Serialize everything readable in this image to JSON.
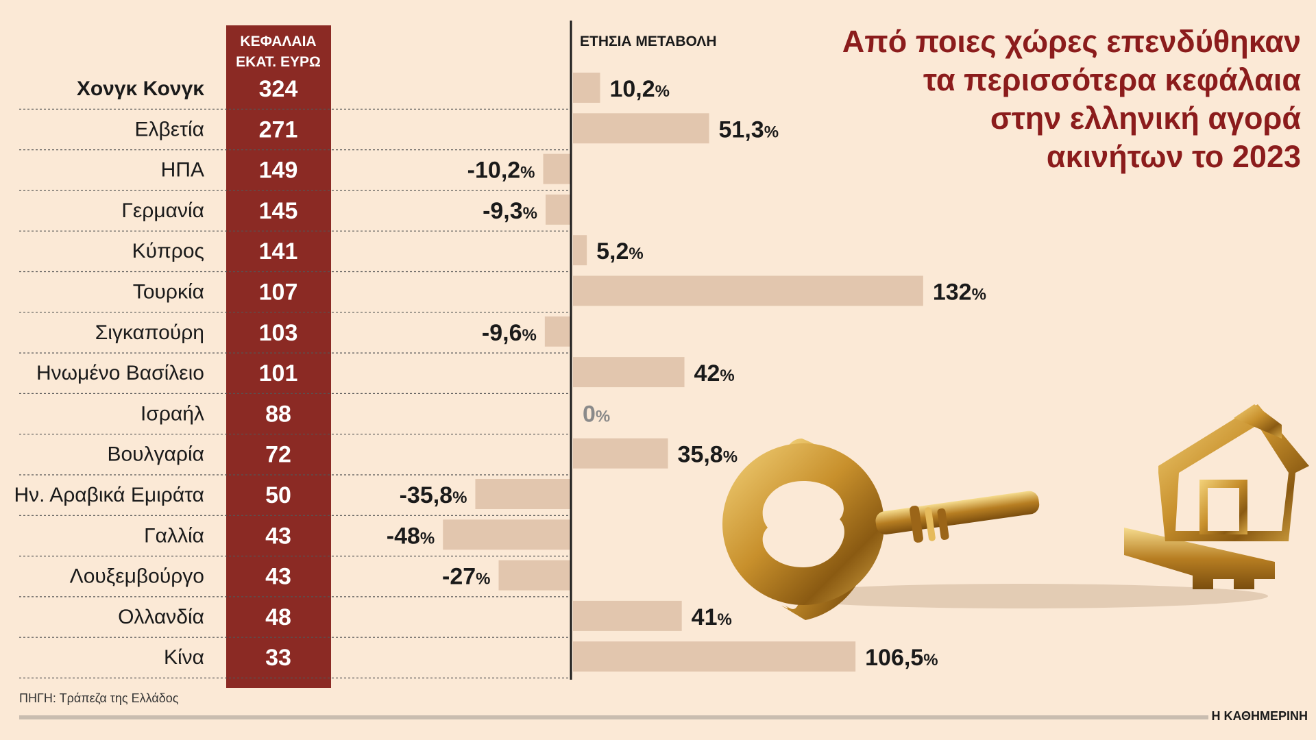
{
  "title_lines": [
    "Από ποιες χώρες επενδύθηκαν",
    "τα περισσότερα κεφάλαια",
    "στην ελληνική αγορά",
    "ακινήτων το 2023"
  ],
  "capital_header": [
    "ΚΕΦΑΛΑΙΑ",
    "ΕΚΑΤ. ΕΥΡΩ"
  ],
  "change_header": "ΕΤΗΣΙΑ ΜΕΤΑΒΟΛΗ",
  "source": "ΠΗΓΗ: Τράπεζα της Ελλάδος",
  "brand": "Η ΚΑΘΗΜΕΡΙΝΗ",
  "colors": {
    "background": "#fbe9d6",
    "capital_column": "#8b2a24",
    "change_bar": "#e2c6ae",
    "title": "#8b1c1c"
  },
  "illustration": "golden-house-key",
  "chart_data": {
    "type": "bar",
    "categories": [
      "Χονγκ Κονγκ",
      "Ελβετία",
      "ΗΠΑ",
      "Γερμανία",
      "Κύπρος",
      "Τουρκία",
      "Σιγκαπούρη",
      "Ηνωμένο Βασίλειο",
      "Ισραήλ",
      "Βουλγαρία",
      "Ην. Αραβικά Εμιράτα",
      "Γαλλία",
      "Λουξεμβούργο",
      "Ολλανδία",
      "Κίνα"
    ],
    "series": [
      {
        "name": "ΚΕΦΑΛΑΙΑ ΕΚΑΤ. ΕΥΡΩ",
        "values": [
          324,
          271,
          149,
          145,
          141,
          107,
          103,
          101,
          88,
          72,
          50,
          43,
          43,
          48,
          33
        ],
        "labels": [
          "324",
          "271",
          "149",
          "145",
          "141",
          "107",
          "103",
          "101",
          "88",
          "72",
          "50",
          "43",
          "43",
          "48",
          "33"
        ]
      },
      {
        "name": "ΕΤΗΣΙΑ ΜΕΤΑΒΟΛΗ",
        "values": [
          10.2,
          51.3,
          -10.2,
          -9.3,
          5.2,
          132,
          -9.6,
          42,
          0,
          35.8,
          -35.8,
          -48,
          -27,
          41,
          106.5
        ],
        "labels": [
          "10,2",
          "51,3",
          "-10,2",
          "-9,3",
          "5,2",
          "132",
          "-9,6",
          "42",
          "0",
          "35,8",
          "-35,8",
          "-48",
          "-27",
          "41",
          "106,5"
        ],
        "unit": "%"
      }
    ]
  }
}
